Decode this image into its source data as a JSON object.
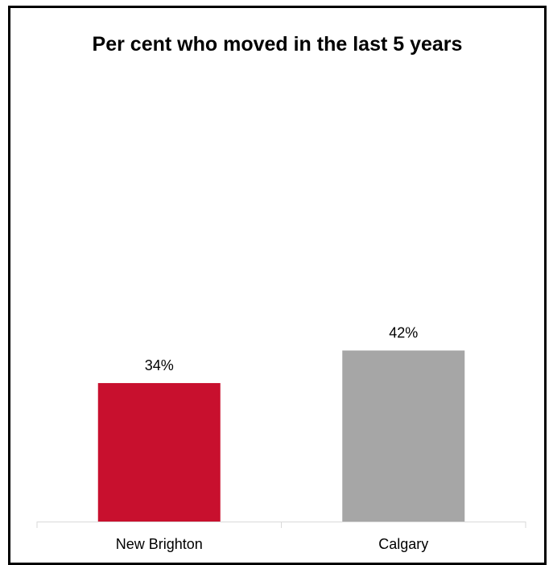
{
  "chart_data": {
    "type": "bar",
    "title": "Per cent who moved in the last 5 years",
    "categories": [
      "New Brighton",
      "Calgary"
    ],
    "values": [
      34,
      42
    ],
    "value_labels": [
      "34%",
      "42%"
    ],
    "colors": [
      "#c8102e",
      "#a6a6a6"
    ],
    "xlabel": "",
    "ylabel": "",
    "ylim": [
      0,
      100
    ],
    "grid": false,
    "legend": "none"
  }
}
